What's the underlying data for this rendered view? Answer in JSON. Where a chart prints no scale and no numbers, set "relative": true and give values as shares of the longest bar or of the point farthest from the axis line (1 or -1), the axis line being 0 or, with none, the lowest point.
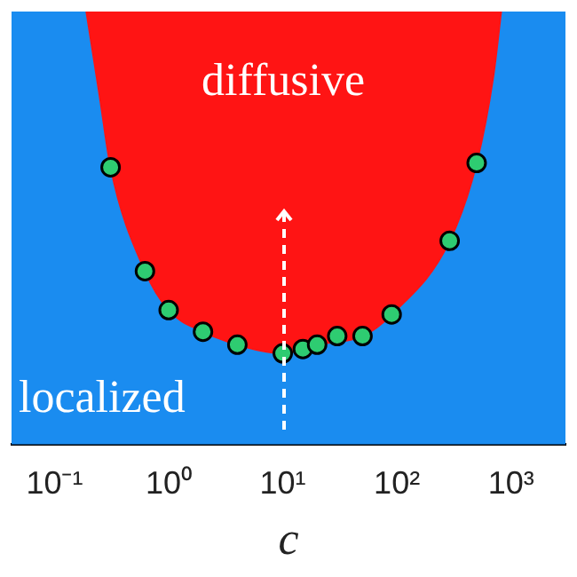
{
  "chart_data": {
    "type": "scatter",
    "relative": true,
    "log": "x",
    "grid": false,
    "legend": false,
    "tick_labels": "x",
    "marker": "circle",
    "xlabel": "c",
    "xlim": [
      0.042,
      3000
    ],
    "xticks": [
      {
        "value": 0.1,
        "label": "10⁻¹"
      },
      {
        "value": 1,
        "label": "10⁰"
      },
      {
        "value": 10,
        "label": "10¹"
      },
      {
        "value": 100,
        "label": "10²"
      },
      {
        "value": 1000,
        "label": "10³"
      }
    ],
    "annotations": [
      "diffusive",
      "localized"
    ],
    "series": [
      {
        "type": "area",
        "marker": "none",
        "color": "#ff1414",
        "x": [
          0.19,
          0.25,
          0.31,
          0.62,
          1,
          2,
          4,
          10,
          20,
          50,
          90,
          290,
          500,
          700,
          820
        ],
        "values": [
          1,
          0.8,
          0.64,
          0.4,
          0.31,
          0.26,
          0.23,
          0.21,
          0.23,
          0.25,
          0.3,
          0.47,
          0.65,
          0.85,
          1
        ]
      },
      {
        "color": "#2ecc71",
        "x": [
          0.31,
          0.62,
          1,
          2,
          4,
          10,
          15,
          20,
          30,
          50,
          90,
          290,
          500
        ],
        "values": [
          0.64,
          0.4,
          0.31,
          0.26,
          0.23,
          0.21,
          0.22,
          0.23,
          0.25,
          0.25,
          0.3,
          0.47,
          0.65
        ]
      }
    ]
  }
}
